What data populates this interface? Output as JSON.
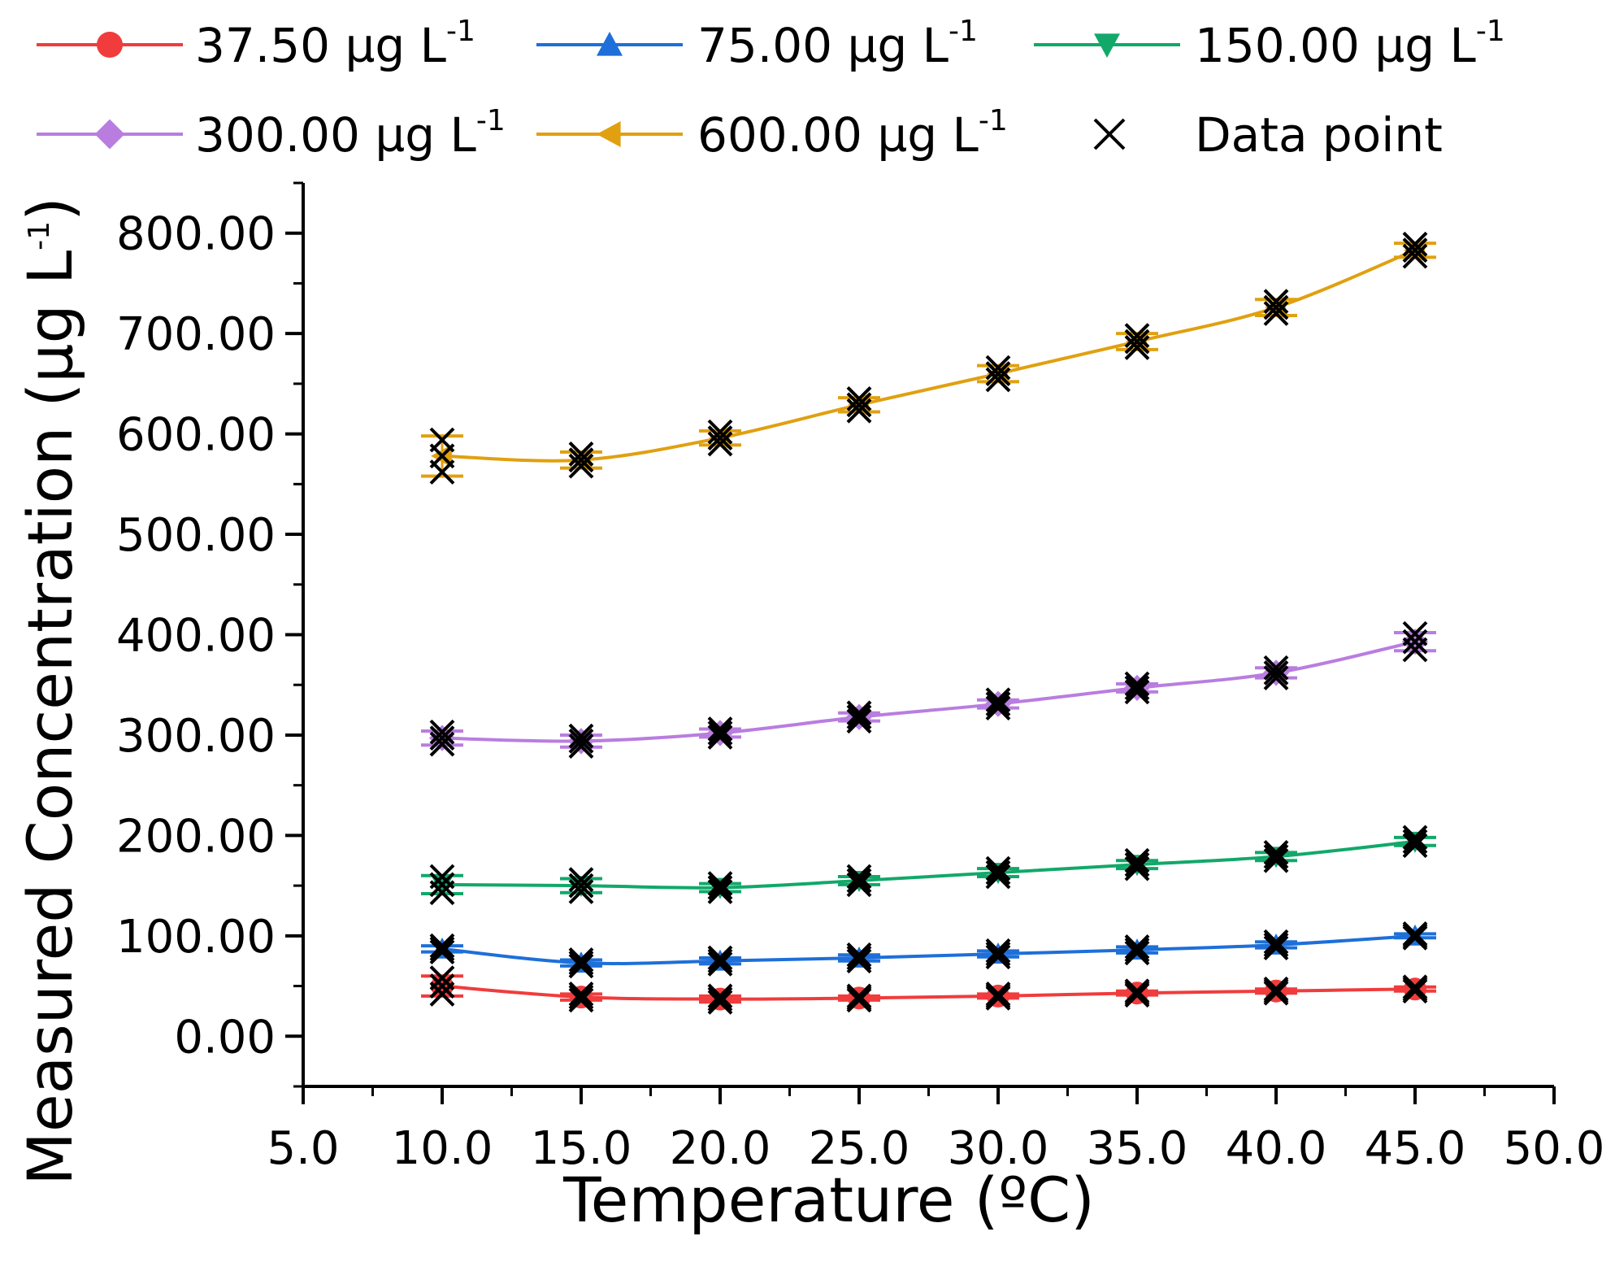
{
  "chart_data": {
    "type": "line",
    "title": "",
    "xlabel": "Temperature (ºC)",
    "ylabel_main": "Measured Concentration (µg L",
    "ylabel_sup": "-1",
    "ylabel_close": ")",
    "xlim": [
      5.0,
      50.0
    ],
    "ylim": [
      -50,
      850
    ],
    "x_ticks": [
      5.0,
      10.0,
      15.0,
      20.0,
      25.0,
      30.0,
      35.0,
      40.0,
      45.0,
      50.0
    ],
    "x_tick_labels": [
      "5.0",
      "10.0",
      "15.0",
      "20.0",
      "25.0",
      "30.0",
      "35.0",
      "40.0",
      "45.0",
      "50.0"
    ],
    "y_ticks": [
      0,
      100,
      200,
      300,
      400,
      500,
      600,
      700,
      800
    ],
    "y_tick_labels": [
      "0.00",
      "100.00",
      "200.00",
      "300.00",
      "400.00",
      "500.00",
      "600.00",
      "700.00",
      "800.00"
    ],
    "grid": false,
    "legend_position": "top",
    "x": [
      10,
      15,
      20,
      25,
      30,
      35,
      40,
      45
    ],
    "series": [
      {
        "name": "37.50 µg L",
        "name_sup": "-1",
        "color": "#f03c3c",
        "marker": "circle",
        "values": [
          50,
          39,
          37,
          38,
          40,
          43,
          45,
          47
        ],
        "errors": [
          10,
          3,
          3,
          2,
          2,
          2,
          2,
          2
        ],
        "points": [
          [
            50,
            42,
            58
          ],
          [
            39,
            36,
            42
          ],
          [
            37,
            34,
            40
          ],
          [
            38,
            36,
            40
          ],
          [
            40,
            38,
            42
          ],
          [
            43,
            41,
            45
          ],
          [
            45,
            43,
            47
          ],
          [
            47,
            45,
            49
          ]
        ]
      },
      {
        "name": "75.00 µg L",
        "name_sup": "-1",
        "color": "#1e6fd9",
        "marker": "triangle-up",
        "values": [
          87,
          73,
          75,
          78,
          82,
          86,
          91,
          100
        ],
        "errors": [
          3,
          3,
          3,
          3,
          3,
          3,
          3,
          2
        ],
        "points": [
          [
            87,
            84,
            90
          ],
          [
            73,
            70,
            76
          ],
          [
            75,
            72,
            78
          ],
          [
            78,
            75,
            81
          ],
          [
            82,
            79,
            85
          ],
          [
            86,
            83,
            89
          ],
          [
            91,
            88,
            94
          ],
          [
            100,
            98,
            102
          ]
        ]
      },
      {
        "name": "150.00 µg L",
        "name_sup": "-1",
        "color": "#12a86a",
        "marker": "triangle-down",
        "values": [
          151,
          150,
          148,
          155,
          163,
          171,
          179,
          194
        ],
        "errors": [
          9,
          7,
          4,
          4,
          4,
          4,
          4,
          4
        ],
        "points": [
          [
            151,
            143,
            159
          ],
          [
            150,
            144,
            156
          ],
          [
            148,
            144,
            152
          ],
          [
            155,
            151,
            159
          ],
          [
            163,
            159,
            167
          ],
          [
            171,
            167,
            175
          ],
          [
            179,
            175,
            183
          ],
          [
            194,
            190,
            198
          ]
        ]
      },
      {
        "name": "300.00 µg L",
        "name_sup": "-1",
        "color": "#b97de0",
        "marker": "diamond",
        "values": [
          297,
          294,
          302,
          318,
          331,
          347,
          362,
          393
        ],
        "errors": [
          7,
          6,
          4,
          4,
          4,
          4,
          5,
          9
        ],
        "points": [
          [
            297,
            291,
            303
          ],
          [
            294,
            289,
            299
          ],
          [
            302,
            298,
            306
          ],
          [
            318,
            314,
            322
          ],
          [
            331,
            327,
            335
          ],
          [
            347,
            343,
            351
          ],
          [
            362,
            357,
            367
          ],
          [
            393,
            385,
            401
          ]
        ]
      },
      {
        "name": "600.00 µg L",
        "name_sup": "-1",
        "color": "#e0a010",
        "marker": "triangle-left",
        "values": [
          578,
          574,
          596,
          629,
          660,
          692,
          726,
          783
        ],
        "errors": [
          20,
          8,
          7,
          7,
          8,
          8,
          8,
          7
        ],
        "points": [
          [
            578,
            562,
            594
          ],
          [
            574,
            568,
            580
          ],
          [
            596,
            590,
            602
          ],
          [
            629,
            623,
            635
          ],
          [
            660,
            654,
            666
          ],
          [
            692,
            686,
            698
          ],
          [
            726,
            720,
            732
          ],
          [
            783,
            777,
            789
          ]
        ]
      }
    ],
    "legend_extra": "Data point"
  }
}
